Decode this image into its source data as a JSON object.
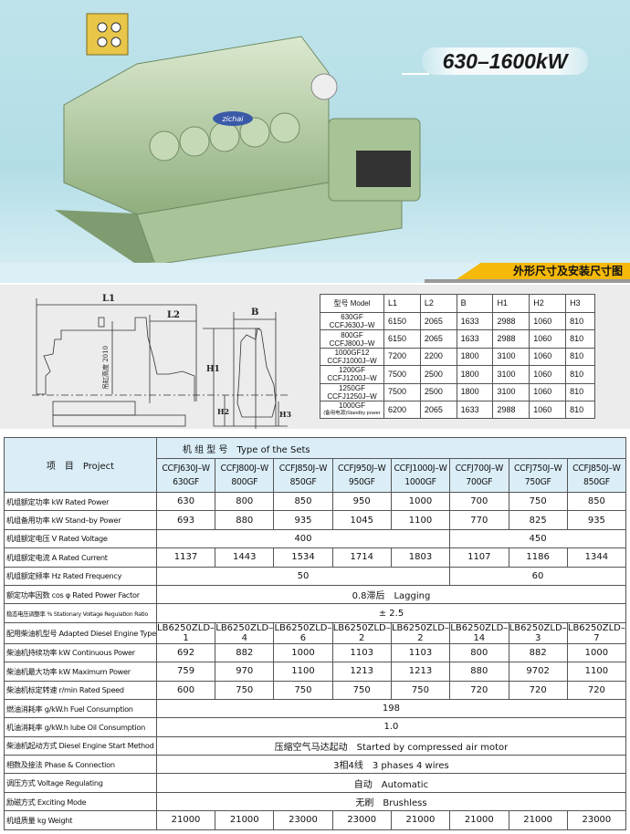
{
  "hero": {
    "power_range": "630–1600kW",
    "engine_logo_text": "zichai"
  },
  "banner": {
    "title": "外形尺寸及安装尺寸图"
  },
  "drawing": {
    "labels": {
      "l1": "L1",
      "l2": "L2",
      "b": "B",
      "h1": "H1",
      "h2": "H2",
      "h3": "H3",
      "lift_height": "吊缸高度 2010"
    }
  },
  "dimension_table": {
    "headers": [
      "型号 Model",
      "L1",
      "L2",
      "B",
      "H1",
      "H2",
      "H3"
    ],
    "rows": [
      {
        "model": [
          "630GF",
          "CCFJ630J–W"
        ],
        "values": [
          "6150",
          "2065",
          "1633",
          "2988",
          "1060",
          "810"
        ]
      },
      {
        "model": [
          "800GF",
          "CCFJ800J–W"
        ],
        "values": [
          "6150",
          "2065",
          "1633",
          "2988",
          "1060",
          "810"
        ]
      },
      {
        "model": [
          "1000GF12",
          "CCFJ1000J–W"
        ],
        "values": [
          "7200",
          "2200",
          "1800",
          "3100",
          "1060",
          "810"
        ]
      },
      {
        "model": [
          "1200GF",
          "CCFJ1200J–W"
        ],
        "values": [
          "7500",
          "2500",
          "1800",
          "3100",
          "1060",
          "810"
        ]
      },
      {
        "model": [
          "1250GF",
          "CCFJ1250J–W"
        ],
        "values": [
          "7500",
          "2500",
          "1800",
          "3100",
          "1060",
          "810"
        ]
      },
      {
        "model": [
          "1000GF",
          "(备用电源)Standby power"
        ],
        "values": [
          "6200",
          "2065",
          "1633",
          "2988",
          "1060",
          "810"
        ]
      }
    ]
  },
  "spec_table": {
    "project_label": "项　目　Project",
    "sets_label": "机 组 型 号　Type of the Sets",
    "models": [
      [
        "CCFJ630J–W",
        "630GF"
      ],
      [
        "CCFJ800J–W",
        "800GF"
      ],
      [
        "CCFJ850J–W",
        "850GF"
      ],
      [
        "CCFJ950J–W",
        "950GF"
      ],
      [
        "CCFJ1000J–W",
        "1000GF"
      ],
      [
        "CCFJ700J–W",
        "700GF"
      ],
      [
        "CCFJ750J–W",
        "750GF"
      ],
      [
        "CCFJ850J–W",
        "850GF"
      ]
    ],
    "rows": [
      {
        "label": "机组额定功率 kW  Rated Power",
        "cells": [
          {
            "v": "630"
          },
          {
            "v": "800"
          },
          {
            "v": "850"
          },
          {
            "v": "950"
          },
          {
            "v": "1000"
          },
          {
            "v": "700"
          },
          {
            "v": "750"
          },
          {
            "v": "850"
          }
        ]
      },
      {
        "label": "机组备用功率 kW  Stand–by Power",
        "cells": [
          {
            "v": "693"
          },
          {
            "v": "880"
          },
          {
            "v": "935"
          },
          {
            "v": "1045"
          },
          {
            "v": "1100"
          },
          {
            "v": "770"
          },
          {
            "v": "825"
          },
          {
            "v": "935"
          }
        ]
      },
      {
        "label": "机组额定电压 V    Rated Voltage",
        "cells": [
          {
            "v": "400",
            "span": 5
          },
          {
            "v": "450",
            "span": 3
          }
        ]
      },
      {
        "label": "机组额定电流 A    Rated Current",
        "cells": [
          {
            "v": "1137"
          },
          {
            "v": "1443"
          },
          {
            "v": "1534"
          },
          {
            "v": "1714"
          },
          {
            "v": "1803"
          },
          {
            "v": "1107"
          },
          {
            "v": "1186"
          },
          {
            "v": "1344"
          }
        ]
      },
      {
        "label": "机组额定频率 Hz   Rated Frequency",
        "cells": [
          {
            "v": "50",
            "span": 5
          },
          {
            "v": "60",
            "span": 3
          }
        ]
      },
      {
        "label": "额定功率因数 cos φ Rated Power Factor",
        "cells": [
          {
            "v": "0.8滞后　Lagging",
            "span": 8
          }
        ]
      },
      {
        "label": "稳态电压调整率 % Stationary Voltage Regulation Ratio",
        "small": true,
        "cells": [
          {
            "v": "± 2.5",
            "span": 8
          }
        ]
      },
      {
        "label": "配用柴油机型号 Adapted Diesel Engine Type",
        "cells": [
          {
            "v": "LB6250ZLD–1"
          },
          {
            "v": "LB6250ZLD–4"
          },
          {
            "v": "LB6250ZLD–6"
          },
          {
            "v": "LB6250ZLD–2"
          },
          {
            "v": "LB6250ZLD–2"
          },
          {
            "v": "LB6250ZLD–14"
          },
          {
            "v": "LB6250ZLD–3"
          },
          {
            "v": "LB6250ZLD–7"
          }
        ]
      },
      {
        "label": "柴油机持续功率 kW Continuous Power",
        "cells": [
          {
            "v": "692"
          },
          {
            "v": "882"
          },
          {
            "v": "1000"
          },
          {
            "v": "1103"
          },
          {
            "v": "1103"
          },
          {
            "v": "800"
          },
          {
            "v": "882"
          },
          {
            "v": "1000"
          }
        ]
      },
      {
        "label": "柴油机最大功率 kW Maximum Power",
        "cells": [
          {
            "v": "759"
          },
          {
            "v": "970"
          },
          {
            "v": "1100"
          },
          {
            "v": "1213"
          },
          {
            "v": "1213"
          },
          {
            "v": "880"
          },
          {
            "v": "9702"
          },
          {
            "v": "1100"
          }
        ]
      },
      {
        "label": "柴油机标定转速 r/min Rated Speed",
        "cells": [
          {
            "v": "600"
          },
          {
            "v": "750"
          },
          {
            "v": "750"
          },
          {
            "v": "750"
          },
          {
            "v": "750"
          },
          {
            "v": "720"
          },
          {
            "v": "720"
          },
          {
            "v": "720"
          }
        ]
      },
      {
        "label": "燃油消耗率 g/kW.h Fuel Consumption",
        "cells": [
          {
            "v": "198",
            "span": 8
          }
        ]
      },
      {
        "label": "机油消耗率 g/kW.h lube Oil Consumption",
        "cells": [
          {
            "v": "1.0",
            "span": 8
          }
        ]
      },
      {
        "label": "柴油机起动方式 Diesel Engine Start Method",
        "cells": [
          {
            "v": "压缩空气马达起动　Started by compressed air motor",
            "span": 8
          }
        ]
      },
      {
        "label": "相数及接法 Phase & Connection",
        "cells": [
          {
            "v": "3相4线　3 phases 4 wires",
            "span": 8
          }
        ]
      },
      {
        "label": "调压方式 Voltage Regulating",
        "cells": [
          {
            "v": "自动　Automatic",
            "span": 8
          }
        ]
      },
      {
        "label": "励磁方式 Exciting Mode",
        "cells": [
          {
            "v": "无刷　Brushless",
            "span": 8
          }
        ]
      },
      {
        "label": "机组质量 kg Weight",
        "cells": [
          {
            "v": "21000"
          },
          {
            "v": "21000"
          },
          {
            "v": "23000"
          },
          {
            "v": "23000"
          },
          {
            "v": "21000"
          },
          {
            "v": "21000"
          },
          {
            "v": "21000"
          },
          {
            "v": "23000"
          }
        ]
      }
    ]
  },
  "colors": {
    "hero_bg": "#b3dde6",
    "banner_accent": "#f5b90a",
    "engine_green": "#b9d3a6",
    "header_bg": "#dbeef8"
  }
}
